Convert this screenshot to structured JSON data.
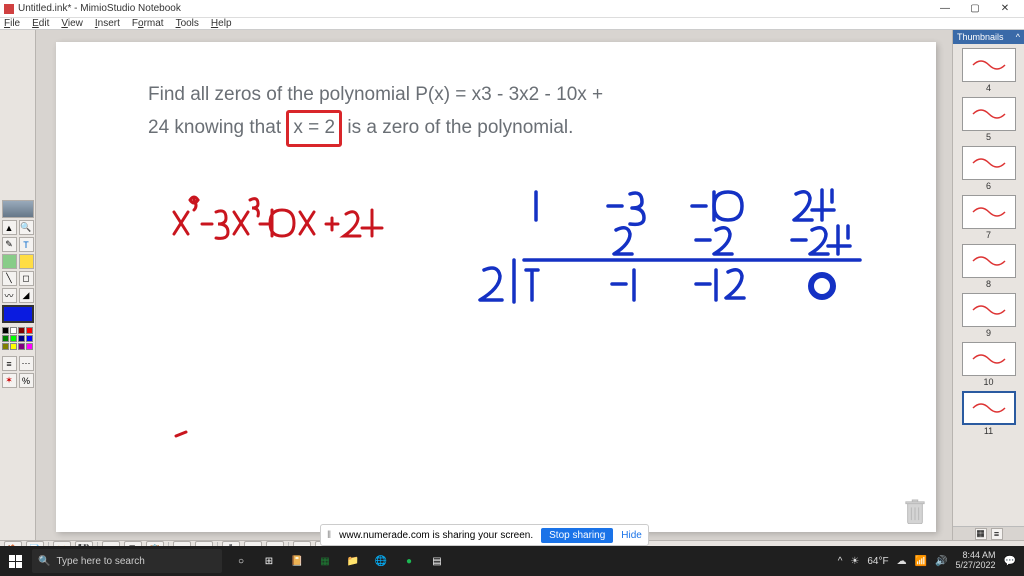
{
  "window": {
    "title": "Untitled.ink* - MimioStudio Notebook",
    "menus": [
      "File",
      "Edit",
      "View",
      "Insert",
      "Format",
      "Tools",
      "Help"
    ],
    "controls": {
      "min": "—",
      "max": "▢",
      "close": "✕"
    }
  },
  "thumbnails": {
    "header": "Thumbnails",
    "items": [
      {
        "num": "4"
      },
      {
        "num": "5"
      },
      {
        "num": "6"
      },
      {
        "num": "7"
      },
      {
        "num": "8"
      },
      {
        "num": "9"
      },
      {
        "num": "10"
      },
      {
        "num": "11",
        "active": true
      }
    ]
  },
  "toolbox": {
    "colors": [
      "#000000",
      "#808080",
      "#800000",
      "#ff0000",
      "#008000",
      "#00ff00",
      "#000080",
      "#0000ff",
      "#808000",
      "#ffff00",
      "#800080",
      "#ff00ff",
      "#008080",
      "#00ffff",
      "#ffffff",
      "#c0c0c0"
    ],
    "current_color": "#0a1be0"
  },
  "canvas": {
    "problem_line1": "Find all zeros of the polynomial P(x) = x3 - 3x2 - 10x +",
    "problem_line2_a": "24 knowing that ",
    "problem_line2_boxed": "x = 2",
    "problem_line2_b": " is a zero of the polynomial.",
    "ink": {
      "red_expr": "x³ − 3x² − 10x + 24",
      "red_color": "#c9151e",
      "blue_color": "#1431c4",
      "synthetic": {
        "divisor": "2",
        "row1": [
          "1",
          "-3",
          "-10",
          "24"
        ],
        "row2": [
          "2",
          "-2",
          "-24"
        ],
        "row3": [
          "1",
          "-1",
          "-12",
          "0"
        ]
      }
    }
  },
  "share": {
    "text": "www.numerade.com is sharing your screen.",
    "stop": "Stop sharing",
    "hide": "Hide"
  },
  "taskbar": {
    "search_placeholder": "Type here to search",
    "temp": "64°F",
    "time": "8:44 AM",
    "date": "5/27/2022"
  }
}
